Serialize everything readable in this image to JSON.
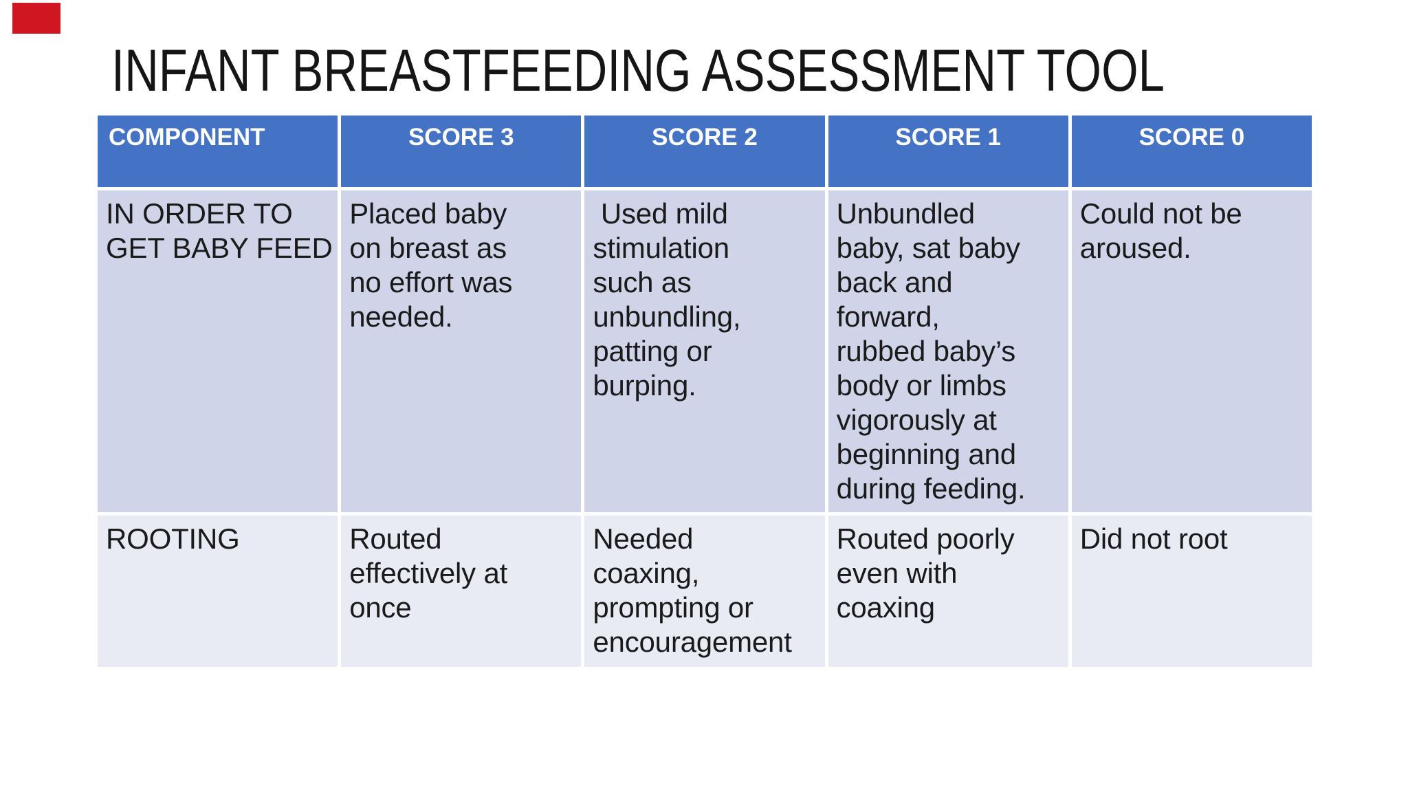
{
  "slide": {
    "title": "INFANT BREASTFEEDING ASSESSMENT TOOL"
  },
  "marker": {
    "description": "red-rectangle-top-left",
    "color": "#d01620"
  },
  "colors": {
    "header_bg": "#4472c4",
    "header_text": "#ffffff",
    "row1_bg": "#cfd4e8",
    "row2_bg": "#e9ebf4",
    "body_text": "#1a1a1a",
    "gridline": "#ffffff",
    "title_text": "#151515"
  },
  "table": {
    "headers": [
      "COMPONENT",
      "SCORE 3",
      "SCORE 2",
      "SCORE 1",
      "SCORE 0"
    ],
    "rows": [
      {
        "cells": [
          "IN ORDER TO\nGET BABY FEED",
          "Placed baby\non breast as\nno effort was\nneeded.",
          " Used mild\nstimulation\nsuch as\nunbundling,\npatting or\nburping.",
          "Unbundled\nbaby, sat baby\nback and\nforward,\nrubbed baby’s\nbody or limbs\nvigorously at\nbeginning and\nduring feeding.",
          "Could not be\naroused."
        ]
      },
      {
        "cells": [
          "ROOTING",
          "Routed\neffectively at\nonce",
          "Needed\ncoaxing,\nprompting or\nencouragement",
          "Routed poorly\neven with\ncoaxing",
          "Did not root"
        ]
      }
    ]
  }
}
